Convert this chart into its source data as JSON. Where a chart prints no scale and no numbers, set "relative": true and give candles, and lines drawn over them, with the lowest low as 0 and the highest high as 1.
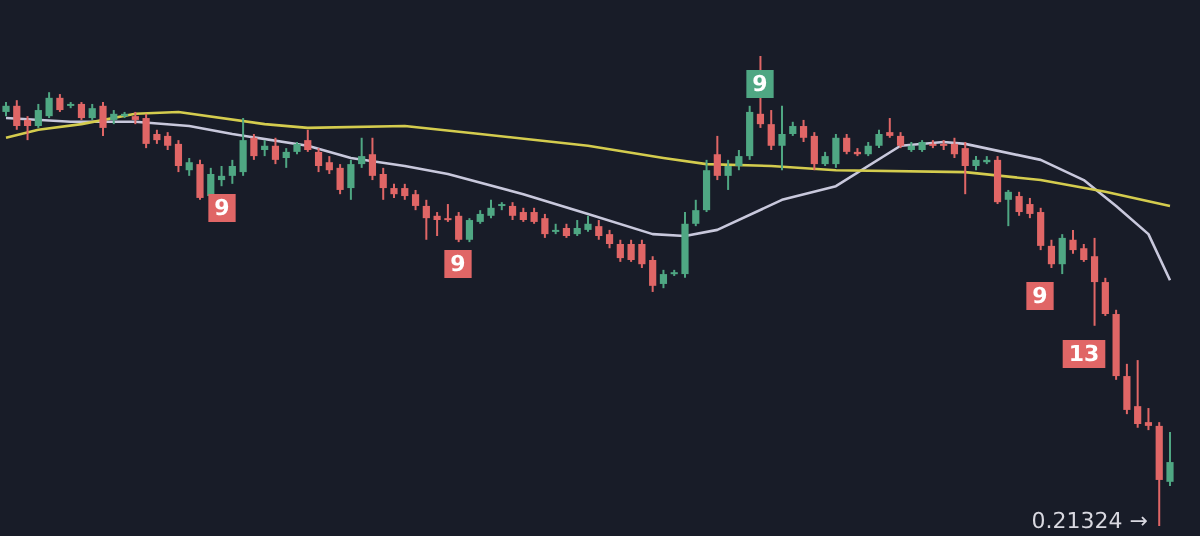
{
  "chart_data": {
    "type": "candlestick",
    "relative": true,
    "categories": [
      null,
      null,
      null,
      null,
      null,
      null,
      null,
      null,
      null,
      null,
      null,
      null,
      null,
      null,
      null,
      null,
      null,
      null,
      null,
      null,
      null,
      null,
      null,
      null,
      null,
      null,
      null,
      null,
      null,
      null,
      null,
      null,
      null,
      null,
      null,
      null,
      null,
      null,
      null,
      null,
      null,
      null,
      null,
      null,
      null,
      null,
      null,
      null,
      null,
      null,
      null,
      null,
      null,
      null,
      null,
      null,
      null,
      null,
      null,
      null,
      null,
      null,
      null,
      null,
      null,
      null,
      null,
      null,
      null,
      null,
      null,
      null,
      null,
      null,
      null,
      null,
      null,
      null,
      null,
      null,
      null,
      null,
      null,
      null,
      null,
      null,
      null,
      null,
      null,
      null,
      null,
      null,
      null,
      null,
      null,
      null,
      null,
      null,
      null,
      null,
      null,
      null,
      null,
      null,
      null,
      null,
      null,
      null,
      null
    ],
    "ohlc": [
      [
        0.881,
        0.902,
        0.872,
        0.894
      ],
      [
        0.894,
        0.906,
        0.843,
        0.851
      ],
      [
        0.864,
        0.872,
        0.821,
        0.851
      ],
      [
        0.851,
        0.898,
        0.847,
        0.885
      ],
      [
        0.872,
        0.923,
        0.868,
        0.911
      ],
      [
        0.911,
        0.919,
        0.881,
        0.885
      ],
      [
        0.894,
        0.902,
        0.889,
        0.898
      ],
      [
        0.898,
        0.902,
        0.864,
        0.868
      ],
      [
        0.868,
        0.898,
        0.864,
        0.889
      ],
      [
        0.894,
        0.902,
        0.83,
        0.847
      ],
      [
        0.864,
        0.885,
        0.855,
        0.877
      ],
      [
        0.872,
        0.881,
        0.868,
        0.877
      ],
      [
        0.872,
        0.881,
        0.855,
        0.864
      ],
      [
        0.868,
        0.877,
        0.804,
        0.813
      ],
      [
        0.834,
        0.843,
        0.813,
        0.821
      ],
      [
        0.83,
        0.838,
        0.8,
        0.809
      ],
      [
        0.813,
        0.821,
        0.753,
        0.766
      ],
      [
        0.757,
        0.783,
        0.745,
        0.774
      ],
      [
        0.77,
        0.779,
        0.694,
        0.698
      ],
      [
        0.702,
        0.762,
        0.694,
        0.749
      ],
      [
        0.736,
        0.766,
        0.723,
        0.745
      ],
      [
        0.745,
        0.779,
        0.728,
        0.766
      ],
      [
        0.753,
        0.868,
        0.745,
        0.821
      ],
      [
        0.826,
        0.834,
        0.779,
        0.787
      ],
      [
        0.8,
        0.821,
        0.787,
        0.809
      ],
      [
        0.809,
        0.826,
        0.77,
        0.779
      ],
      [
        0.783,
        0.804,
        0.762,
        0.796
      ],
      [
        0.796,
        0.817,
        0.791,
        0.813
      ],
      [
        0.821,
        0.843,
        0.796,
        0.8
      ],
      [
        0.796,
        0.804,
        0.753,
        0.766
      ],
      [
        0.774,
        0.787,
        0.749,
        0.757
      ],
      [
        0.762,
        0.77,
        0.706,
        0.715
      ],
      [
        0.719,
        0.779,
        0.694,
        0.77
      ],
      [
        0.77,
        0.826,
        0.762,
        0.787
      ],
      [
        0.791,
        0.826,
        0.736,
        0.745
      ],
      [
        0.749,
        0.762,
        0.694,
        0.719
      ],
      [
        0.719,
        0.728,
        0.698,
        0.706
      ],
      [
        0.719,
        0.728,
        0.694,
        0.702
      ],
      [
        0.706,
        0.715,
        0.672,
        0.681
      ],
      [
        0.681,
        0.694,
        0.609,
        0.655
      ],
      [
        0.66,
        0.668,
        0.617,
        0.651
      ],
      [
        0.655,
        0.685,
        0.647,
        0.651
      ],
      [
        0.66,
        0.668,
        0.604,
        0.609
      ],
      [
        0.609,
        0.655,
        0.604,
        0.651
      ],
      [
        0.647,
        0.672,
        0.643,
        0.664
      ],
      [
        0.66,
        0.694,
        0.655,
        0.677
      ],
      [
        0.681,
        0.689,
        0.672,
        0.685
      ],
      [
        0.681,
        0.689,
        0.651,
        0.66
      ],
      [
        0.668,
        0.677,
        0.647,
        0.651
      ],
      [
        0.668,
        0.677,
        0.643,
        0.647
      ],
      [
        0.655,
        0.664,
        0.613,
        0.621
      ],
      [
        0.626,
        0.643,
        0.621,
        0.63
      ],
      [
        0.634,
        0.643,
        0.613,
        0.617
      ],
      [
        0.621,
        0.651,
        0.617,
        0.634
      ],
      [
        0.63,
        0.66,
        0.626,
        0.643
      ],
      [
        0.638,
        0.651,
        0.609,
        0.617
      ],
      [
        0.621,
        0.63,
        0.591,
        0.6
      ],
      [
        0.6,
        0.609,
        0.562,
        0.57
      ],
      [
        0.6,
        0.609,
        0.562,
        0.566
      ],
      [
        0.6,
        0.609,
        0.549,
        0.557
      ],
      [
        0.566,
        0.574,
        0.498,
        0.511
      ],
      [
        0.515,
        0.545,
        0.506,
        0.536
      ],
      [
        0.536,
        0.545,
        0.532,
        0.54
      ],
      [
        0.536,
        0.668,
        0.528,
        0.643
      ],
      [
        0.643,
        0.694,
        0.638,
        0.672
      ],
      [
        0.672,
        0.779,
        0.668,
        0.757
      ],
      [
        0.791,
        0.83,
        0.736,
        0.745
      ],
      [
        0.745,
        0.779,
        0.715,
        0.766
      ],
      [
        0.766,
        0.8,
        0.757,
        0.787
      ],
      [
        0.787,
        0.894,
        0.779,
        0.881
      ],
      [
        0.877,
        1.0,
        0.847,
        0.855
      ],
      [
        0.855,
        0.885,
        0.8,
        0.809
      ],
      [
        0.809,
        0.894,
        0.757,
        0.834
      ],
      [
        0.834,
        0.86,
        0.83,
        0.851
      ],
      [
        0.851,
        0.864,
        0.817,
        0.826
      ],
      [
        0.83,
        0.838,
        0.757,
        0.77
      ],
      [
        0.77,
        0.796,
        0.766,
        0.787
      ],
      [
        0.77,
        0.834,
        0.762,
        0.826
      ],
      [
        0.826,
        0.834,
        0.791,
        0.796
      ],
      [
        0.796,
        0.804,
        0.787,
        0.791
      ],
      [
        0.791,
        0.817,
        0.787,
        0.809
      ],
      [
        0.809,
        0.843,
        0.804,
        0.834
      ],
      [
        0.838,
        0.868,
        0.826,
        0.83
      ],
      [
        0.83,
        0.838,
        0.804,
        0.809
      ],
      [
        0.8,
        0.817,
        0.796,
        0.809
      ],
      [
        0.8,
        0.821,
        0.796,
        0.817
      ],
      [
        0.813,
        0.821,
        0.804,
        0.809
      ],
      [
        0.813,
        0.821,
        0.8,
        0.809
      ],
      [
        0.813,
        0.826,
        0.783,
        0.791
      ],
      [
        0.804,
        0.817,
        0.706,
        0.766
      ],
      [
        0.766,
        0.787,
        0.757,
        0.779
      ],
      [
        0.774,
        0.787,
        0.77,
        0.779
      ],
      [
        0.779,
        0.787,
        0.685,
        0.689
      ],
      [
        0.694,
        0.715,
        0.638,
        0.711
      ],
      [
        0.702,
        0.711,
        0.66,
        0.668
      ],
      [
        0.685,
        0.698,
        0.655,
        0.664
      ],
      [
        0.668,
        0.677,
        0.587,
        0.596
      ],
      [
        0.596,
        0.609,
        0.549,
        0.557
      ],
      [
        0.557,
        0.621,
        0.536,
        0.613
      ],
      [
        0.609,
        0.63,
        0.579,
        0.587
      ],
      [
        0.591,
        0.6,
        0.562,
        0.566
      ],
      [
        0.574,
        0.613,
        0.426,
        0.519
      ],
      [
        0.519,
        0.528,
        0.447,
        0.451
      ],
      [
        0.451,
        0.46,
        0.311,
        0.319
      ],
      [
        0.319,
        0.345,
        0.238,
        0.247
      ],
      [
        0.255,
        0.353,
        0.209,
        0.217
      ],
      [
        0.221,
        0.251,
        0.204,
        0.213
      ],
      [
        0.213,
        0.221,
        0.0,
        0.098
      ],
      [
        0.094,
        0.2,
        0.085,
        0.136
      ]
    ],
    "colors": [
      "#4fa783",
      "#e06666",
      "#e06666",
      "#4fa783",
      "#4fa783",
      "#e06666",
      "#4fa783",
      "#e06666",
      "#4fa783",
      "#e06666",
      "#4fa783",
      "#4fa783",
      "#e06666",
      "#e06666",
      "#e06666",
      "#e06666",
      "#e06666",
      "#4fa783",
      "#e06666",
      "#4fa783",
      "#4fa783",
      "#4fa783",
      "#4fa783",
      "#e06666",
      "#4fa783",
      "#e06666",
      "#4fa783",
      "#4fa783",
      "#e06666",
      "#e06666",
      "#e06666",
      "#e06666",
      "#4fa783",
      "#4fa783",
      "#e06666",
      "#e06666",
      "#e06666",
      "#e06666",
      "#e06666",
      "#e06666",
      "#e06666",
      "#e06666",
      "#e06666",
      "#4fa783",
      "#4fa783",
      "#4fa783",
      "#4fa783",
      "#e06666",
      "#e06666",
      "#e06666",
      "#e06666",
      "#4fa783",
      "#e06666",
      "#4fa783",
      "#4fa783",
      "#e06666",
      "#e06666",
      "#e06666",
      "#e06666",
      "#e06666",
      "#e06666",
      "#4fa783",
      "#4fa783",
      "#4fa783",
      "#4fa783",
      "#4fa783",
      "#e06666",
      "#4fa783",
      "#4fa783",
      "#4fa783",
      "#e06666",
      "#e06666",
      "#4fa783",
      "#4fa783",
      "#e06666",
      "#e06666",
      "#4fa783",
      "#4fa783",
      "#e06666",
      "#e06666",
      "#4fa783",
      "#4fa783",
      "#e06666",
      "#e06666",
      "#4fa783",
      "#4fa783",
      "#e06666",
      "#e06666",
      "#e06666",
      "#e06666",
      "#4fa783",
      "#4fa783",
      "#e06666",
      "#4fa783",
      "#e06666",
      "#e06666",
      "#e06666",
      "#e06666",
      "#4fa783",
      "#e06666",
      "#e06666",
      "#e06666",
      "#e06666",
      "#e06666",
      "#e06666",
      "#e06666",
      "#e06666",
      "#e06666",
      "#4fa783"
    ],
    "series": [
      {
        "type": "line",
        "color": "#d4cc4e",
        "values": [
          0.826,
          null,
          null,
          0.843,
          null,
          null,
          null,
          0.855,
          null,
          null,
          null,
          null,
          0.877,
          null,
          null,
          null,
          0.881,
          null,
          null,
          null,
          null,
          null,
          null,
          null,
          0.855,
          null,
          null,
          null,
          0.847,
          null,
          null,
          null,
          null,
          null,
          null,
          null,
          null,
          0.851,
          null,
          null,
          null,
          null,
          null,
          null,
          0.834,
          null,
          null,
          null,
          null,
          null,
          null,
          null,
          null,
          null,
          0.809,
          null,
          null,
          null,
          null,
          null,
          null,
          0.783,
          null,
          null,
          null,
          0.77,
          null,
          null,
          null,
          null,
          null,
          0.766,
          null,
          null,
          null,
          null,
          null,
          0.757,
          null,
          null,
          null,
          null,
          null,
          null,
          null,
          null,
          null,
          null,
          null,
          0.753,
          null,
          null,
          null,
          null,
          null,
          null,
          0.736,
          null,
          null,
          null,
          null,
          null,
          0.711,
          null,
          null,
          null,
          null,
          null,
          0.681
        ]
      },
      {
        "type": "line",
        "color": "#c8c8dc",
        "values": [
          0.868,
          null,
          null,
          null,
          null,
          null,
          0.86,
          null,
          null,
          null,
          null,
          null,
          0.86,
          null,
          null,
          null,
          null,
          0.851,
          null,
          null,
          null,
          0.834,
          null,
          null,
          null,
          null,
          null,
          null,
          0.809,
          null,
          null,
          null,
          0.783,
          null,
          null,
          null,
          null,
          0.766,
          null,
          null,
          null,
          0.749,
          null,
          null,
          null,
          null,
          null,
          null,
          0.706,
          null,
          null,
          null,
          null,
          null,
          0.664,
          null,
          null,
          null,
          null,
          null,
          0.621,
          null,
          null,
          0.617,
          null,
          null,
          0.63,
          null,
          null,
          null,
          null,
          null,
          0.694,
          null,
          null,
          null,
          null,
          0.723,
          null,
          null,
          null,
          null,
          null,
          0.809,
          null,
          null,
          null,
          0.817,
          null,
          0.813,
          null,
          null,
          null,
          null,
          null,
          null,
          0.779,
          null,
          null,
          null,
          0.736,
          null,
          null,
          0.681,
          null,
          null,
          0.621,
          null,
          0.523
        ]
      }
    ],
    "marker": "none",
    "annotations": [
      "9",
      "9",
      "9",
      "9",
      "13",
      "0.21324 →"
    ]
  }
}
